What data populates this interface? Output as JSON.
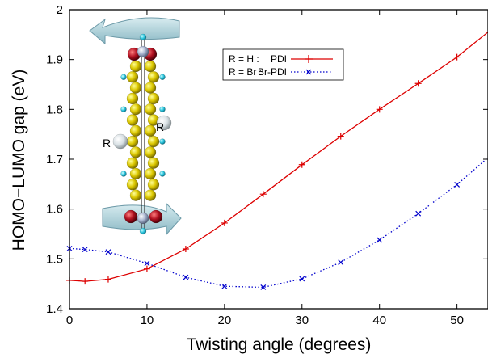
{
  "chart_data": {
    "type": "line",
    "xlabel": "Twisting angle (degrees)",
    "ylabel": "HOMO−LUMO gap (eV)",
    "xlim": [
      0,
      54
    ],
    "ylim": [
      1.4,
      2.0
    ],
    "xticks": [
      0,
      10,
      20,
      30,
      40,
      50
    ],
    "yticks": [
      1.4,
      1.5,
      1.6,
      1.7,
      1.8,
      1.9,
      2.0
    ],
    "xtick_labels": [
      "0",
      "10",
      "20",
      "30",
      "40",
      "50"
    ],
    "ytick_labels": [
      "1.4",
      "1.5",
      "1.6",
      "1.7",
      "1.8",
      "1.9",
      "2"
    ],
    "grid": false,
    "legend_position": "top-right",
    "series": [
      {
        "name": "PDI",
        "legend_prefix": "R = H   :",
        "color": "#dd0000",
        "line_style": "solid",
        "marker": "plus",
        "points": [
          [
            0,
            1.457
          ],
          [
            2,
            1.455
          ],
          [
            5,
            1.459
          ],
          [
            10,
            1.48
          ],
          [
            15,
            1.52
          ],
          [
            20,
            1.572
          ],
          [
            25,
            1.63
          ],
          [
            30,
            1.689
          ],
          [
            35,
            1.746
          ],
          [
            40,
            1.8
          ],
          [
            45,
            1.852
          ],
          [
            50,
            1.905
          ]
        ],
        "line_end": [
          54,
          1.955
        ]
      },
      {
        "name": "Br-PDI",
        "legend_prefix": "R = Br :",
        "color": "#0000cc",
        "line_style": "dotted",
        "marker": "x",
        "points": [
          [
            0,
            1.521
          ],
          [
            2,
            1.519
          ],
          [
            5,
            1.514
          ],
          [
            10,
            1.491
          ],
          [
            15,
            1.463
          ],
          [
            20,
            1.445
          ],
          [
            25,
            1.443
          ],
          [
            30,
            1.46
          ],
          [
            35,
            1.493
          ],
          [
            40,
            1.538
          ],
          [
            45,
            1.591
          ],
          [
            50,
            1.649
          ]
        ],
        "line_end": [
          54,
          1.703
        ]
      }
    ],
    "annotations": [
      "R",
      "R"
    ]
  }
}
